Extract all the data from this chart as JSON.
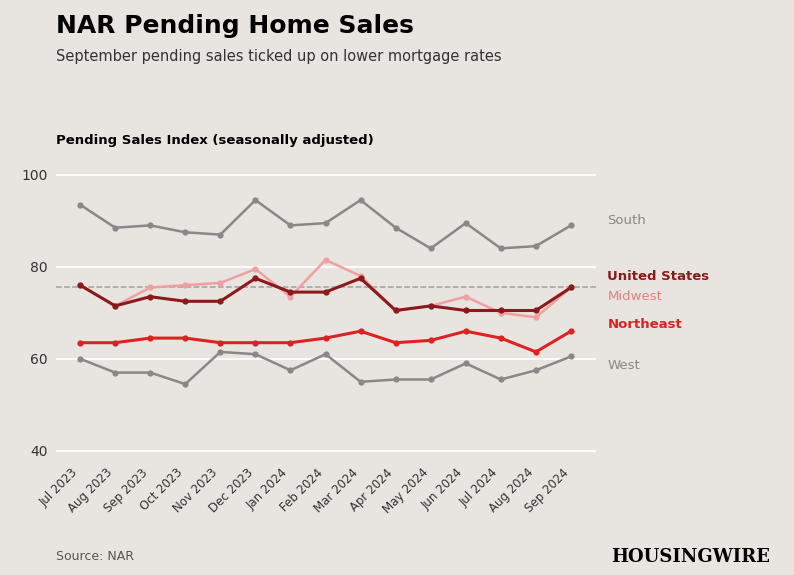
{
  "title": "NAR Pending Home Sales",
  "subtitle": "September pending sales ticked up on lower mortgage rates",
  "ylabel": "Pending Sales Index (seasonally adjusted)",
  "source": "Source: NAR",
  "background_color": "#e8e4df",
  "plot_bg_color": "#e8e4df",
  "months": [
    "Jul 2023",
    "Aug 2023",
    "Sep 2023",
    "Oct 2023",
    "Nov 2023",
    "Dec 2023",
    "Jan 2024",
    "Feb 2024",
    "Mar 2024",
    "Apr 2024",
    "May 2024",
    "Jun 2024",
    "Jul 2024",
    "Aug 2024",
    "Sep 2024"
  ],
  "series_values": {
    "South": [
      93.5,
      88.5,
      89.0,
      87.5,
      87.0,
      94.5,
      89.0,
      89.5,
      94.5,
      88.5,
      84.0,
      89.5,
      84.0,
      84.5,
      89.0
    ],
    "United States": [
      76.0,
      71.5,
      73.5,
      72.5,
      72.5,
      77.5,
      74.5,
      74.5,
      77.5,
      70.5,
      71.5,
      70.5,
      70.5,
      70.5,
      75.5
    ],
    "Midwest": [
      76.0,
      71.5,
      75.5,
      76.0,
      76.5,
      79.5,
      73.5,
      81.5,
      78.0,
      70.5,
      71.5,
      73.5,
      70.0,
      69.0,
      75.5
    ],
    "Northeast": [
      63.5,
      63.5,
      64.5,
      64.5,
      63.5,
      63.5,
      63.5,
      64.5,
      66.0,
      63.5,
      64.0,
      66.0,
      64.5,
      61.5,
      66.0
    ],
    "West": [
      60.0,
      57.0,
      57.0,
      54.5,
      61.5,
      61.0,
      57.5,
      61.0,
      55.0,
      55.5,
      55.5,
      59.0,
      55.5,
      57.5,
      60.5
    ]
  },
  "series_styles": {
    "South": {
      "color": "#888888",
      "linewidth": 1.8,
      "markersize": 4.5,
      "zorder": 2,
      "fontweight": "normal",
      "label_color": "#888888"
    },
    "United States": {
      "color": "#8b1a1a",
      "linewidth": 2.2,
      "markersize": 4.5,
      "zorder": 4,
      "fontweight": "bold",
      "label_color": "#8b1a1a"
    },
    "Midwest": {
      "color": "#f0a0a0",
      "linewidth": 1.8,
      "markersize": 4.5,
      "zorder": 3,
      "fontweight": "normal",
      "label_color": "#e08080"
    },
    "Northeast": {
      "color": "#dd2222",
      "linewidth": 2.2,
      "markersize": 4.5,
      "zorder": 5,
      "fontweight": "bold",
      "label_color": "#dd2222"
    },
    "West": {
      "color": "#888888",
      "linewidth": 1.8,
      "markersize": 4.5,
      "zorder": 1,
      "fontweight": "normal",
      "label_color": "#888888"
    }
  },
  "plot_order": [
    "West",
    "South",
    "Midwest",
    "United States",
    "Northeast"
  ],
  "dashed_line_y": 75.5,
  "ylim": [
    38,
    103
  ],
  "yticks": [
    40,
    60,
    80,
    100
  ],
  "label_y_offsets": {
    "South": 1.0,
    "United States": 2.5,
    "Midwest": -2.0,
    "Northeast": 1.5,
    "West": -2.0
  }
}
